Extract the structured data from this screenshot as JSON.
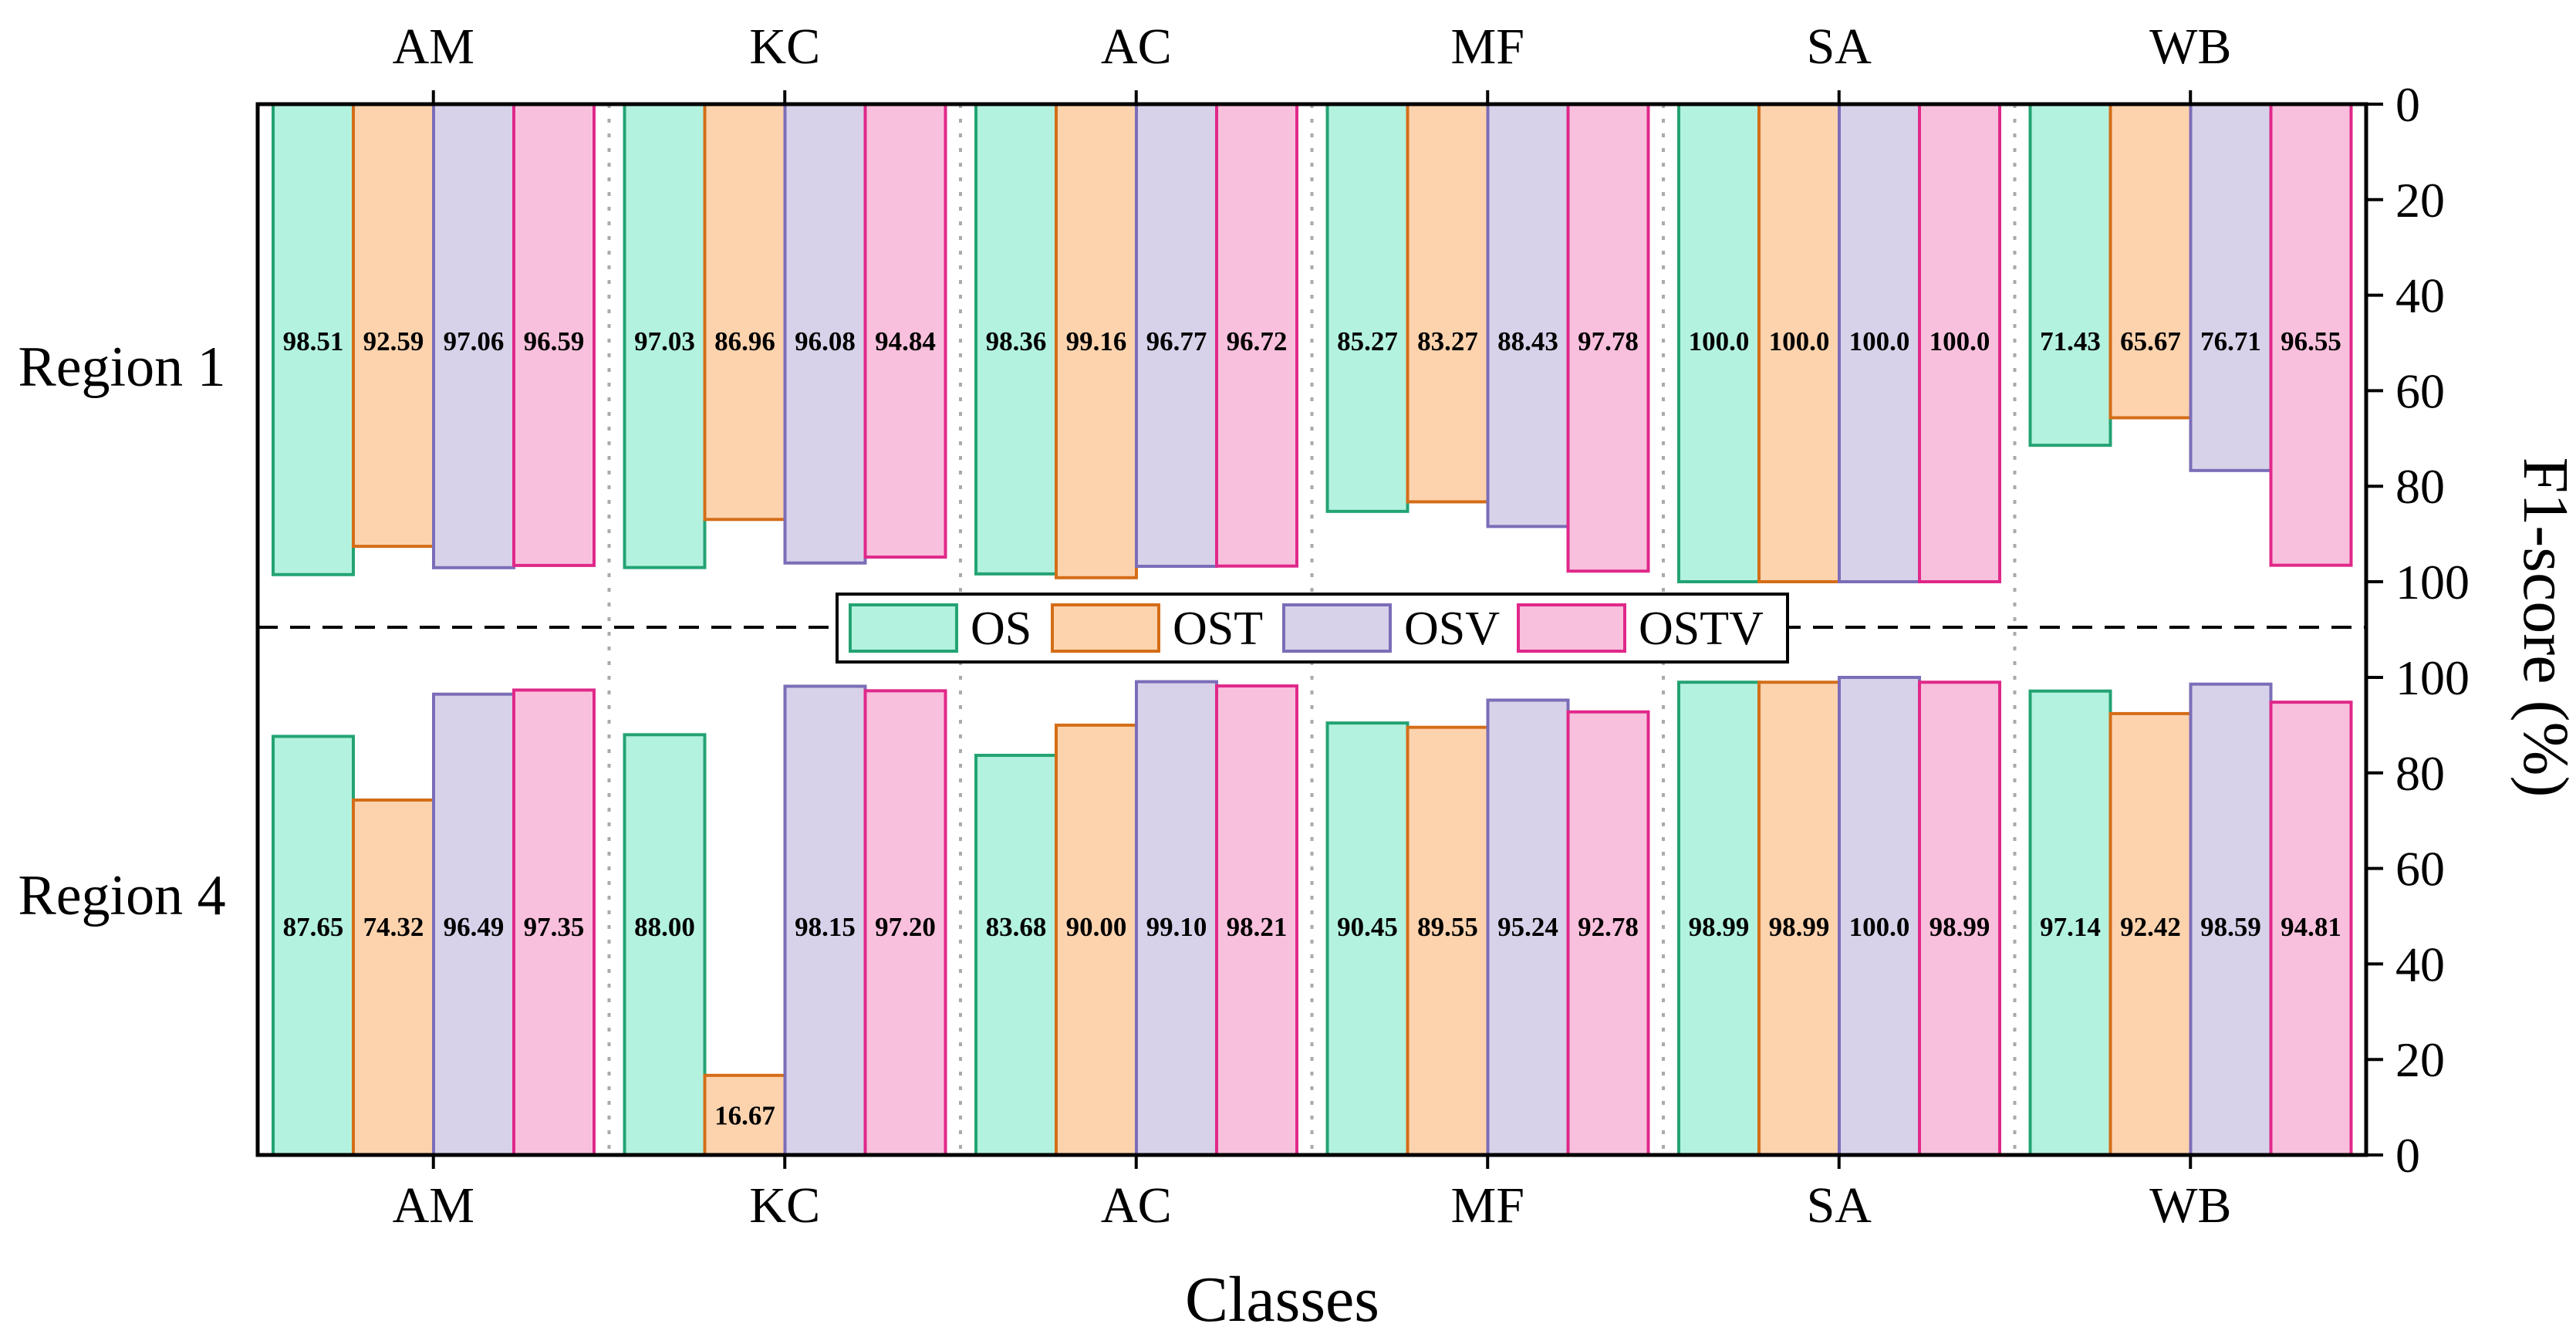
{
  "chart_data": {
    "type": "bar",
    "categories": [
      "AM",
      "KC",
      "AC",
      "MF",
      "SA",
      "WB"
    ],
    "series": [
      {
        "name": "OS",
        "color": "#b3f2df",
        "stroke": "#23a373"
      },
      {
        "name": "OST",
        "color": "#fdd3ae",
        "stroke": "#d46d17"
      },
      {
        "name": "OSV",
        "color": "#d7d2e9",
        "stroke": "#7c6db8"
      },
      {
        "name": "OSTV",
        "color": "#f8c0dc",
        "stroke": "#e0288a"
      }
    ],
    "panels": [
      {
        "name": "Region 1",
        "orientation": "inverted",
        "values": {
          "OS": [
            98.51,
            97.03,
            98.36,
            85.27,
            100.0,
            71.43
          ],
          "OST": [
            92.59,
            86.96,
            99.16,
            83.27,
            100.0,
            65.67
          ],
          "OSV": [
            97.06,
            96.08,
            96.77,
            88.43,
            100.0,
            76.71
          ],
          "OSTV": [
            96.59,
            94.84,
            96.72,
            97.78,
            100.0,
            96.55
          ]
        },
        "labels": {
          "OS": [
            "98.51",
            "97.03",
            "98.36",
            "85.27",
            "100.0",
            "71.43"
          ],
          "OST": [
            "92.59",
            "86.96",
            "99.16",
            "83.27",
            "100.0",
            "65.67"
          ],
          "OSV": [
            "97.06",
            "96.08",
            "96.77",
            "88.43",
            "100.0",
            "76.71"
          ],
          "OSTV": [
            "96.59",
            "94.84",
            "96.72",
            "97.78",
            "100.0",
            "96.55"
          ]
        },
        "yticks": [
          "0",
          "20",
          "40",
          "60",
          "80",
          "100"
        ]
      },
      {
        "name": "Region 4",
        "orientation": "normal",
        "values": {
          "OS": [
            87.65,
            88.0,
            83.68,
            90.45,
            98.99,
            97.14
          ],
          "OST": [
            74.32,
            16.67,
            90.0,
            89.55,
            98.99,
            92.42
          ],
          "OSV": [
            96.49,
            98.15,
            99.1,
            95.24,
            100.0,
            98.59
          ],
          "OSTV": [
            97.35,
            97.2,
            98.21,
            92.78,
            98.99,
            94.81
          ]
        },
        "labels": {
          "OS": [
            "87.65",
            "88.00",
            "83.68",
            "90.45",
            "98.99",
            "97.14"
          ],
          "OST": [
            "74.32",
            "16.67",
            "90.00",
            "89.55",
            "98.99",
            "92.42"
          ],
          "OSV": [
            "96.49",
            "98.15",
            "99.10",
            "95.24",
            "100.0",
            "98.59"
          ],
          "OSTV": [
            "97.35",
            "97.20",
            "98.21",
            "92.78",
            "98.99",
            "94.81"
          ]
        },
        "yticks": [
          "100",
          "80",
          "60",
          "40",
          "20",
          "0"
        ]
      }
    ],
    "ylim": [
      0,
      100
    ],
    "xlabel": "Classes",
    "ylabel": "F1-score (%)",
    "legend_position": "center"
  }
}
